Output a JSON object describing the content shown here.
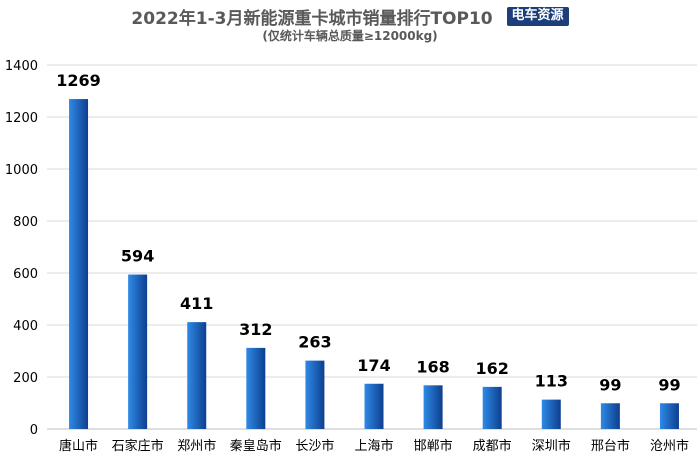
{
  "header": {
    "title": "2022年1-3月新能源重卡城市销量排行TOP10",
    "badge": "电车资源",
    "subtitle": "(仅统计车辆总质量≥12000kg)"
  },
  "colors": {
    "bar_light": "#2f8ae6",
    "bar_dark": "#0d3f8f",
    "grid": "#d9d9d9",
    "axis_text": "#000000",
    "title_text": "#595959",
    "badge_bg": "#1c3f7c"
  },
  "chart_data": {
    "type": "bar",
    "title": "2022年1-3月新能源重卡城市销量排行TOP10",
    "subtitle": "(仅统计车辆总质量≥12000kg)",
    "categories": [
      "唐山市",
      "石家庄市",
      "郑州市",
      "秦皇岛市",
      "长沙市",
      "上海市",
      "邯郸市",
      "成都市",
      "深圳市",
      "邢台市",
      "沧州市"
    ],
    "values": [
      1269,
      594,
      411,
      312,
      263,
      174,
      168,
      162,
      113,
      99,
      99
    ],
    "ylim": [
      0,
      1400
    ],
    "yticks": [
      0,
      200,
      400,
      600,
      800,
      1000,
      1200,
      1400
    ],
    "xlabel": "",
    "ylabel": "",
    "grid": true,
    "legend": "none",
    "data_labels": true
  }
}
